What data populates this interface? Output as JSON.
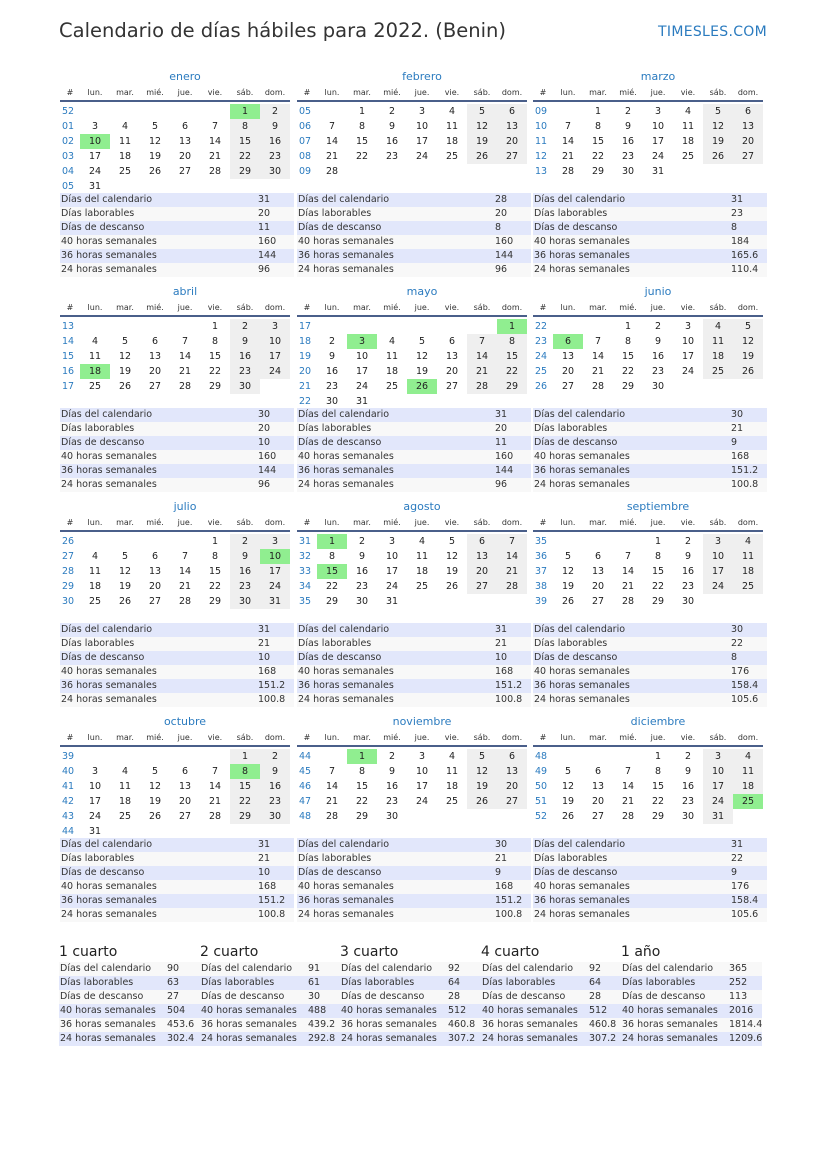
{
  "title": "Calendario de días hábiles para 2022. (Benin)",
  "brand": "TIMESLES.COM",
  "colors": {
    "holiday": "#90ee90",
    "weekend": "#efefef",
    "accent": "#2b7bbf",
    "stats_row": "#e2e7fb"
  },
  "weekday_header": [
    "#",
    "lun.",
    "mar.",
    "mié.",
    "jue.",
    "vie.",
    "sáb.",
    "dom."
  ],
  "stat_labels": [
    "Días del calendario",
    "Días laborables",
    "Días de descanso",
    "40 horas semanales",
    "36 horas semanales",
    "24 horas semanales"
  ],
  "months": [
    {
      "name": "enero",
      "holidays": [
        "1",
        "10"
      ],
      "stats": [
        "31",
        "20",
        "11",
        "160",
        "144",
        "96"
      ],
      "weeks": [
        [
          "52",
          "",
          "",
          "",
          "",
          "",
          "1",
          "2"
        ],
        [
          "01",
          "3",
          "4",
          "5",
          "6",
          "7",
          "8",
          "9"
        ],
        [
          "02",
          "10",
          "11",
          "12",
          "13",
          "14",
          "15",
          "16"
        ],
        [
          "03",
          "17",
          "18",
          "19",
          "20",
          "21",
          "22",
          "23"
        ],
        [
          "04",
          "24",
          "25",
          "26",
          "27",
          "28",
          "29",
          "30"
        ],
        [
          "05",
          "31",
          "",
          "",
          "",
          "",
          "",
          ""
        ]
      ]
    },
    {
      "name": "febrero",
      "holidays": [],
      "stats": [
        "28",
        "20",
        "8",
        "160",
        "144",
        "96"
      ],
      "weeks": [
        [
          "05",
          "",
          "1",
          "2",
          "3",
          "4",
          "5",
          "6"
        ],
        [
          "06",
          "7",
          "8",
          "9",
          "10",
          "11",
          "12",
          "13"
        ],
        [
          "07",
          "14",
          "15",
          "16",
          "17",
          "18",
          "19",
          "20"
        ],
        [
          "08",
          "21",
          "22",
          "23",
          "24",
          "25",
          "26",
          "27"
        ],
        [
          "09",
          "28",
          "",
          "",
          "",
          "",
          "",
          ""
        ]
      ]
    },
    {
      "name": "marzo",
      "holidays": [],
      "stats": [
        "31",
        "23",
        "8",
        "184",
        "165.6",
        "110.4"
      ],
      "weeks": [
        [
          "09",
          "",
          "1",
          "2",
          "3",
          "4",
          "5",
          "6"
        ],
        [
          "10",
          "7",
          "8",
          "9",
          "10",
          "11",
          "12",
          "13"
        ],
        [
          "11",
          "14",
          "15",
          "16",
          "17",
          "18",
          "19",
          "20"
        ],
        [
          "12",
          "21",
          "22",
          "23",
          "24",
          "25",
          "26",
          "27"
        ],
        [
          "13",
          "28",
          "29",
          "30",
          "31",
          "",
          "",
          ""
        ]
      ]
    },
    {
      "name": "abril",
      "holidays": [
        "18"
      ],
      "stats": [
        "30",
        "20",
        "10",
        "160",
        "144",
        "96"
      ],
      "weeks": [
        [
          "13",
          "",
          "",
          "",
          "",
          "1",
          "2",
          "3"
        ],
        [
          "14",
          "4",
          "5",
          "6",
          "7",
          "8",
          "9",
          "10"
        ],
        [
          "15",
          "11",
          "12",
          "13",
          "14",
          "15",
          "16",
          "17"
        ],
        [
          "16",
          "18",
          "19",
          "20",
          "21",
          "22",
          "23",
          "24"
        ],
        [
          "17",
          "25",
          "26",
          "27",
          "28",
          "29",
          "30",
          ""
        ]
      ]
    },
    {
      "name": "mayo",
      "holidays": [
        "1",
        "3",
        "26"
      ],
      "stats": [
        "31",
        "20",
        "11",
        "160",
        "144",
        "96"
      ],
      "weeks": [
        [
          "17",
          "",
          "",
          "",
          "",
          "",
          "",
          "1"
        ],
        [
          "18",
          "2",
          "3",
          "4",
          "5",
          "6",
          "7",
          "8"
        ],
        [
          "19",
          "9",
          "10",
          "11",
          "12",
          "13",
          "14",
          "15"
        ],
        [
          "20",
          "16",
          "17",
          "18",
          "19",
          "20",
          "21",
          "22"
        ],
        [
          "21",
          "23",
          "24",
          "25",
          "26",
          "27",
          "28",
          "29"
        ],
        [
          "22",
          "30",
          "31",
          "",
          "",
          "",
          "",
          ""
        ]
      ]
    },
    {
      "name": "junio",
      "holidays": [
        "6"
      ],
      "stats": [
        "30",
        "21",
        "9",
        "168",
        "151.2",
        "100.8"
      ],
      "weeks": [
        [
          "22",
          "",
          "",
          "1",
          "2",
          "3",
          "4",
          "5"
        ],
        [
          "23",
          "6",
          "7",
          "8",
          "9",
          "10",
          "11",
          "12"
        ],
        [
          "24",
          "13",
          "14",
          "15",
          "16",
          "17",
          "18",
          "19"
        ],
        [
          "25",
          "20",
          "21",
          "22",
          "23",
          "24",
          "25",
          "26"
        ],
        [
          "26",
          "27",
          "28",
          "29",
          "30",
          "",
          "",
          ""
        ]
      ]
    },
    {
      "name": "julio",
      "holidays": [
        "10"
      ],
      "stats": [
        "31",
        "21",
        "10",
        "168",
        "151.2",
        "100.8"
      ],
      "weeks": [
        [
          "26",
          "",
          "",
          "",
          "",
          "1",
          "2",
          "3"
        ],
        [
          "27",
          "4",
          "5",
          "6",
          "7",
          "8",
          "9",
          "10"
        ],
        [
          "28",
          "11",
          "12",
          "13",
          "14",
          "15",
          "16",
          "17"
        ],
        [
          "29",
          "18",
          "19",
          "20",
          "21",
          "22",
          "23",
          "24"
        ],
        [
          "30",
          "25",
          "26",
          "27",
          "28",
          "29",
          "30",
          "31"
        ]
      ]
    },
    {
      "name": "agosto",
      "holidays": [
        "1",
        "15"
      ],
      "stats": [
        "31",
        "21",
        "10",
        "168",
        "151.2",
        "100.8"
      ],
      "weeks": [
        [
          "31",
          "1",
          "2",
          "3",
          "4",
          "5",
          "6",
          "7"
        ],
        [
          "32",
          "8",
          "9",
          "10",
          "11",
          "12",
          "13",
          "14"
        ],
        [
          "33",
          "15",
          "16",
          "17",
          "18",
          "19",
          "20",
          "21"
        ],
        [
          "34",
          "22",
          "23",
          "24",
          "25",
          "26",
          "27",
          "28"
        ],
        [
          "35",
          "29",
          "30",
          "31",
          "",
          "",
          "",
          ""
        ]
      ]
    },
    {
      "name": "septiembre",
      "holidays": [],
      "stats": [
        "30",
        "22",
        "8",
        "176",
        "158.4",
        "105.6"
      ],
      "weeks": [
        [
          "35",
          "",
          "",
          "",
          "1",
          "2",
          "3",
          "4"
        ],
        [
          "36",
          "5",
          "6",
          "7",
          "8",
          "9",
          "10",
          "11"
        ],
        [
          "37",
          "12",
          "13",
          "14",
          "15",
          "16",
          "17",
          "18"
        ],
        [
          "38",
          "19",
          "20",
          "21",
          "22",
          "23",
          "24",
          "25"
        ],
        [
          "39",
          "26",
          "27",
          "28",
          "29",
          "30",
          "",
          ""
        ]
      ]
    },
    {
      "name": "octubre",
      "holidays": [
        "8"
      ],
      "stats": [
        "31",
        "21",
        "10",
        "168",
        "151.2",
        "100.8"
      ],
      "weeks": [
        [
          "39",
          "",
          "",
          "",
          "",
          "",
          "1",
          "2"
        ],
        [
          "40",
          "3",
          "4",
          "5",
          "6",
          "7",
          "8",
          "9"
        ],
        [
          "41",
          "10",
          "11",
          "12",
          "13",
          "14",
          "15",
          "16"
        ],
        [
          "42",
          "17",
          "18",
          "19",
          "20",
          "21",
          "22",
          "23"
        ],
        [
          "43",
          "24",
          "25",
          "26",
          "27",
          "28",
          "29",
          "30"
        ],
        [
          "44",
          "31",
          "",
          "",
          "",
          "",
          "",
          ""
        ]
      ]
    },
    {
      "name": "noviembre",
      "holidays": [
        "1"
      ],
      "stats": [
        "30",
        "21",
        "9",
        "168",
        "151.2",
        "100.8"
      ],
      "weeks": [
        [
          "44",
          "",
          "1",
          "2",
          "3",
          "4",
          "5",
          "6"
        ],
        [
          "45",
          "7",
          "8",
          "9",
          "10",
          "11",
          "12",
          "13"
        ],
        [
          "46",
          "14",
          "15",
          "16",
          "17",
          "18",
          "19",
          "20"
        ],
        [
          "47",
          "21",
          "22",
          "23",
          "24",
          "25",
          "26",
          "27"
        ],
        [
          "48",
          "28",
          "29",
          "30",
          "",
          "",
          "",
          ""
        ]
      ]
    },
    {
      "name": "diciembre",
      "holidays": [
        "25"
      ],
      "stats": [
        "31",
        "22",
        "9",
        "176",
        "158.4",
        "105.6"
      ],
      "weeks": [
        [
          "48",
          "",
          "",
          "",
          "1",
          "2",
          "3",
          "4"
        ],
        [
          "49",
          "5",
          "6",
          "7",
          "8",
          "9",
          "10",
          "11"
        ],
        [
          "50",
          "12",
          "13",
          "14",
          "15",
          "16",
          "17",
          "18"
        ],
        [
          "51",
          "19",
          "20",
          "21",
          "22",
          "23",
          "24",
          "25"
        ],
        [
          "52",
          "26",
          "27",
          "28",
          "29",
          "30",
          "31",
          ""
        ]
      ]
    }
  ],
  "summaries": [
    {
      "title": "1 cuarto",
      "stats": [
        "90",
        "63",
        "27",
        "504",
        "453.6",
        "302.4"
      ]
    },
    {
      "title": "2 cuarto",
      "stats": [
        "91",
        "61",
        "30",
        "488",
        "439.2",
        "292.8"
      ]
    },
    {
      "title": "3 cuarto",
      "stats": [
        "92",
        "64",
        "28",
        "512",
        "460.8",
        "307.2"
      ]
    },
    {
      "title": "4 cuarto",
      "stats": [
        "92",
        "64",
        "28",
        "512",
        "460.8",
        "307.2"
      ]
    },
    {
      "title": "1 año",
      "stats": [
        "365",
        "252",
        "113",
        "2016",
        "1814.4",
        "1209.6"
      ]
    }
  ]
}
